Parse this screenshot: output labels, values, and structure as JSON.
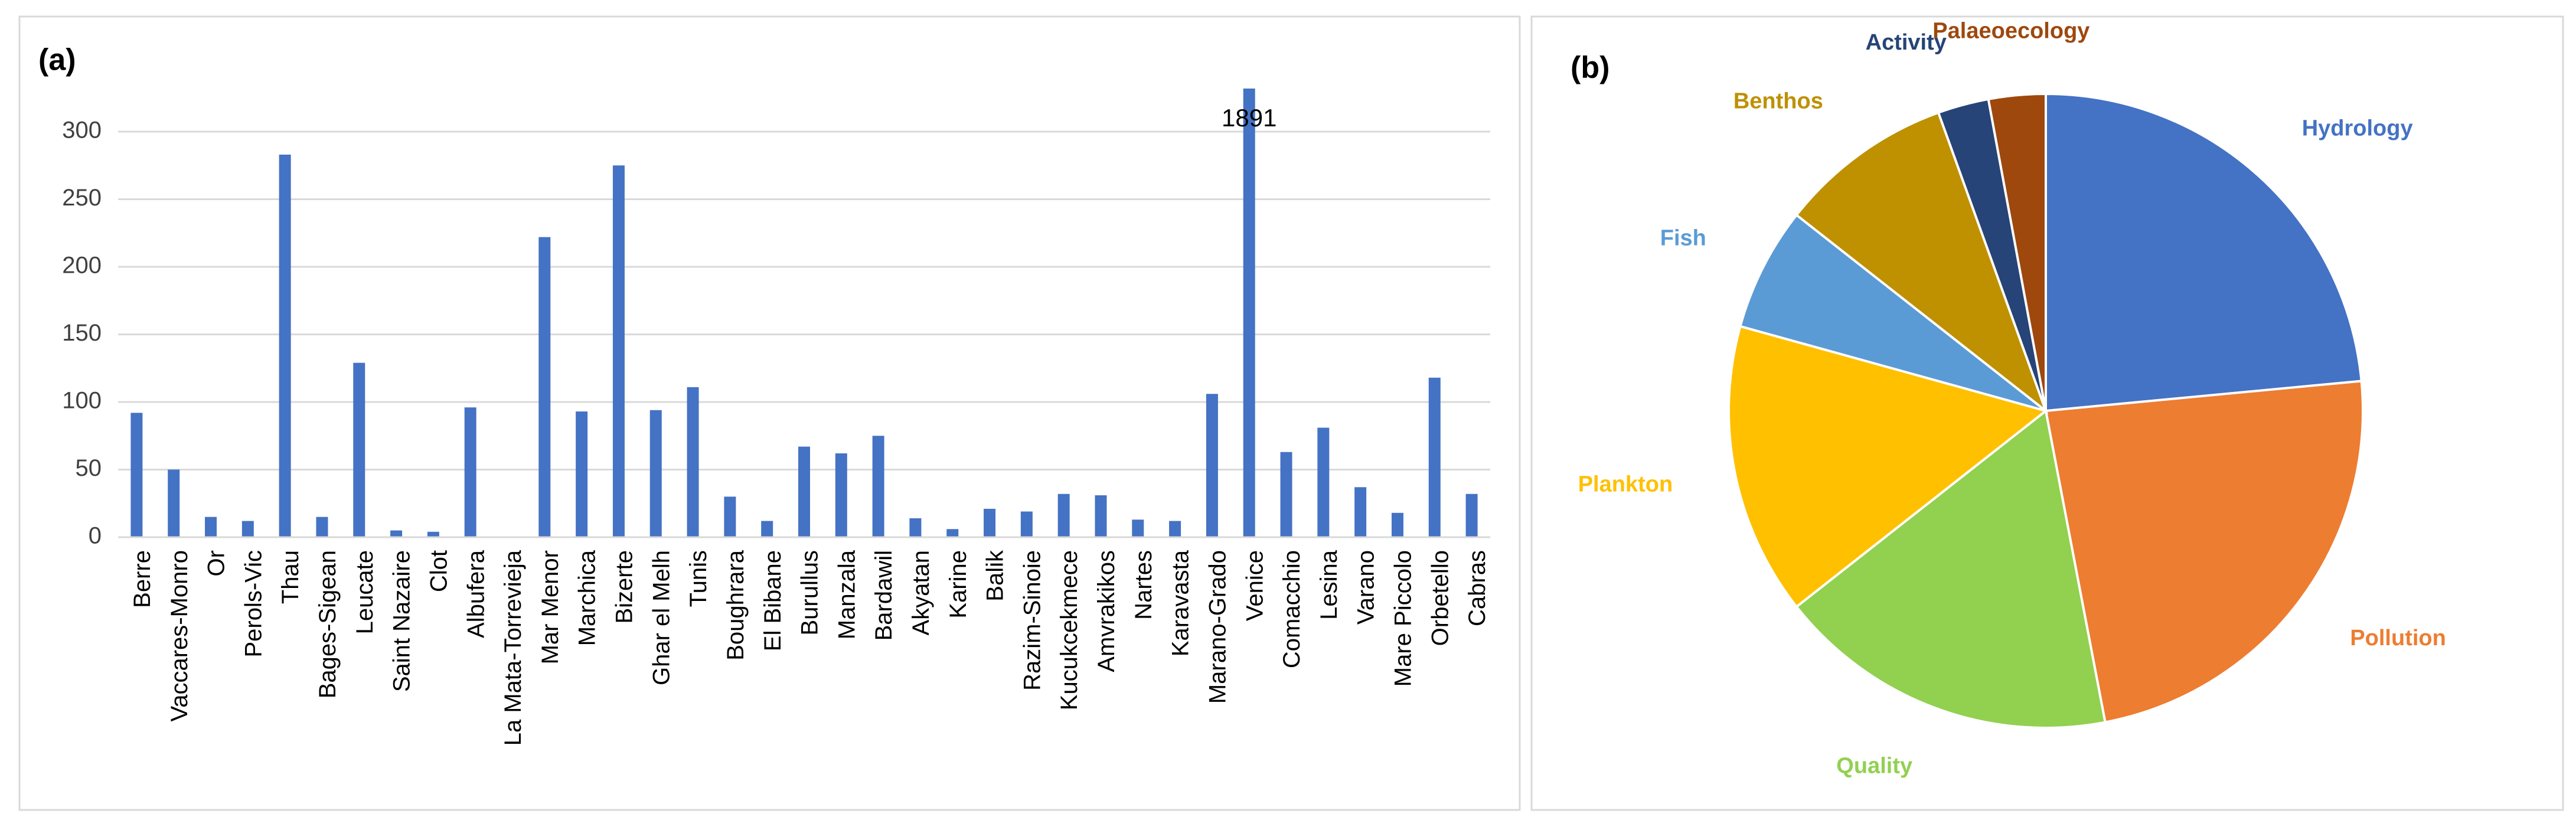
{
  "chart_data": [
    {
      "type": "bar",
      "title": "(a)",
      "categories": [
        "Berre",
        "Vaccares-Monro",
        "Or",
        "Perols-Vic",
        "Thau",
        "Bages-Sigean",
        "Leucate",
        "Saint Nazaire",
        "Clot",
        "Albufera",
        "La Mata-Torrevieja",
        "Mar Menor",
        "Marchica",
        "Bizerte",
        "Ghar el Melh",
        "Tunis",
        "Boughrara",
        "El Bibane",
        "Burullus",
        "Manzala",
        "Bardawil",
        "Akyatan",
        "Karine",
        "Balik",
        "Razim-Sinoie",
        "Kucukcekmece",
        "Amvrakikos",
        "Nartes",
        "Karavasta",
        "Marano-Grado",
        "Venice",
        "Comacchio",
        "Lesina",
        "Varano",
        "Mare Piccolo",
        "Orbetello",
        "Cabras"
      ],
      "values": [
        92,
        50,
        15,
        12,
        283,
        15,
        129,
        5,
        4,
        96,
        0,
        222,
        93,
        275,
        94,
        111,
        30,
        12,
        67,
        62,
        75,
        14,
        6,
        21,
        19,
        32,
        31,
        13,
        12,
        106,
        1891,
        63,
        81,
        37,
        18,
        118,
        32
      ],
      "value_labels": [
        null,
        null,
        null,
        null,
        null,
        null,
        null,
        null,
        null,
        null,
        null,
        null,
        null,
        null,
        null,
        null,
        null,
        null,
        null,
        null,
        null,
        null,
        null,
        null,
        null,
        null,
        null,
        null,
        null,
        null,
        "1891",
        null,
        null,
        null,
        null,
        null,
        null
      ],
      "color": "#4472c4",
      "ylim": [
        0,
        300
      ],
      "yticks": [
        0,
        50,
        100,
        150,
        200,
        250,
        300
      ],
      "grid": true
    },
    {
      "type": "pie",
      "title": "(b)",
      "categories": [
        "Hydrology",
        "Pollution",
        "Quality",
        "Plankton",
        "Fish",
        "Benthos",
        "Activity",
        "Palaeoecology"
      ],
      "values": [
        23.5,
        23.5,
        17.4,
        14.9,
        6.3,
        8.9,
        2.6,
        2.9
      ],
      "colors": [
        "#4472c4",
        "#ed7d31",
        "#92d050",
        "#ffc000",
        "#5b9bd5",
        "#bf9000",
        "#264478",
        "#9e480e"
      ]
    }
  ]
}
